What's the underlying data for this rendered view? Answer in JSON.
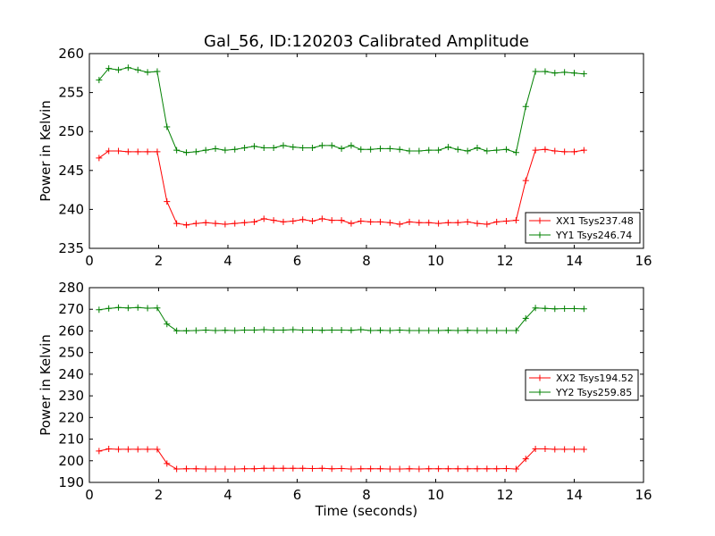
{
  "title": "Gal_56, ID:120203 Calibrated Amplitude",
  "chart_data": [
    {
      "type": "line",
      "title": "Gal_56, ID:120203 Calibrated Amplitude",
      "xlabel": "",
      "ylabel": "Power in Kelvin",
      "xlim": [
        0,
        16
      ],
      "ylim": [
        235,
        260
      ],
      "xticks": [
        "0",
        "2",
        "4",
        "6",
        "8",
        "10",
        "12",
        "14",
        "16"
      ],
      "yticks": [
        "235",
        "240",
        "245",
        "250",
        "255",
        "260"
      ],
      "legend_position": "lower-right",
      "x": [
        0.28,
        0.56,
        0.84,
        1.12,
        1.4,
        1.68,
        1.96,
        2.24,
        2.52,
        2.8,
        3.08,
        3.36,
        3.64,
        3.92,
        4.2,
        4.48,
        4.76,
        5.04,
        5.32,
        5.6,
        5.88,
        6.16,
        6.44,
        6.72,
        7.0,
        7.28,
        7.56,
        7.84,
        8.12,
        8.4,
        8.68,
        8.96,
        9.24,
        9.52,
        9.8,
        10.08,
        10.36,
        10.64,
        10.92,
        11.2,
        11.48,
        11.76,
        12.04,
        12.32,
        12.6,
        12.88,
        13.16,
        13.44,
        13.72,
        14.0,
        14.28
      ],
      "series": [
        {
          "name": "XX1 Tsys237.48",
          "color": "#ff0000",
          "values": [
            246.6,
            247.5,
            247.5,
            247.4,
            247.4,
            247.4,
            247.4,
            241.0,
            238.2,
            238.0,
            238.2,
            238.3,
            238.2,
            238.1,
            238.2,
            238.3,
            238.4,
            238.8,
            238.6,
            238.4,
            238.5,
            238.7,
            238.5,
            238.8,
            238.6,
            238.6,
            238.2,
            238.5,
            238.4,
            238.4,
            238.3,
            238.1,
            238.4,
            238.3,
            238.3,
            238.2,
            238.3,
            238.3,
            238.4,
            238.2,
            238.1,
            238.4,
            238.5,
            238.6,
            243.7,
            247.6,
            247.7,
            247.5,
            247.4,
            247.4,
            247.6
          ]
        },
        {
          "name": "YY1 Tsys246.74",
          "color": "#008000",
          "values": [
            256.6,
            258.1,
            257.9,
            258.2,
            257.9,
            257.6,
            257.7,
            250.6,
            247.6,
            247.3,
            247.4,
            247.6,
            247.8,
            247.6,
            247.7,
            247.9,
            248.1,
            247.9,
            247.9,
            248.2,
            248.0,
            247.9,
            247.9,
            248.2,
            248.2,
            247.8,
            248.2,
            247.7,
            247.7,
            247.8,
            247.8,
            247.7,
            247.5,
            247.5,
            247.6,
            247.6,
            248.0,
            247.7,
            247.5,
            247.9,
            247.5,
            247.6,
            247.7,
            247.3,
            253.2,
            257.7,
            257.7,
            257.5,
            257.6,
            257.5,
            257.4
          ]
        }
      ]
    },
    {
      "type": "line",
      "title": "",
      "xlabel": "Time (seconds)",
      "ylabel": "Power in Kelvin",
      "xlim": [
        0,
        16
      ],
      "ylim": [
        190,
        280
      ],
      "xticks": [
        "0",
        "2",
        "4",
        "6",
        "8",
        "10",
        "12",
        "14",
        "16"
      ],
      "yticks": [
        "190",
        "200",
        "210",
        "220",
        "230",
        "240",
        "250",
        "260",
        "270",
        "280"
      ],
      "legend_position": "center-right",
      "x": [
        0.28,
        0.56,
        0.84,
        1.12,
        1.4,
        1.68,
        1.96,
        2.24,
        2.52,
        2.8,
        3.08,
        3.36,
        3.64,
        3.92,
        4.2,
        4.48,
        4.76,
        5.04,
        5.32,
        5.6,
        5.88,
        6.16,
        6.44,
        6.72,
        7.0,
        7.28,
        7.56,
        7.84,
        8.12,
        8.4,
        8.68,
        8.96,
        9.24,
        9.52,
        9.8,
        10.08,
        10.36,
        10.64,
        10.92,
        11.2,
        11.48,
        11.76,
        12.04,
        12.32,
        12.6,
        12.88,
        13.16,
        13.44,
        13.72,
        14.0,
        14.28
      ],
      "series": [
        {
          "name": "XX2 Tsys194.52",
          "color": "#ff0000",
          "values": [
            204.5,
            205.5,
            205.3,
            205.3,
            205.3,
            205.3,
            205.3,
            198.7,
            196.2,
            196.3,
            196.3,
            196.2,
            196.2,
            196.2,
            196.2,
            196.3,
            196.3,
            196.5,
            196.5,
            196.5,
            196.5,
            196.5,
            196.4,
            196.5,
            196.3,
            196.4,
            196.2,
            196.3,
            196.3,
            196.3,
            196.2,
            196.2,
            196.3,
            196.2,
            196.3,
            196.3,
            196.3,
            196.3,
            196.3,
            196.3,
            196.3,
            196.3,
            196.4,
            196.2,
            200.9,
            205.5,
            205.5,
            205.3,
            205.3,
            205.3,
            205.3
          ]
        },
        {
          "name": "YY2 Tsys259.85",
          "color": "#008000",
          "values": [
            269.8,
            270.4,
            270.8,
            270.6,
            270.8,
            270.5,
            270.6,
            263.2,
            260.1,
            260.1,
            260.2,
            260.4,
            260.2,
            260.3,
            260.2,
            260.4,
            260.4,
            260.6,
            260.4,
            260.4,
            260.6,
            260.4,
            260.4,
            260.3,
            260.4,
            260.4,
            260.3,
            260.6,
            260.2,
            260.3,
            260.2,
            260.4,
            260.2,
            260.2,
            260.2,
            260.2,
            260.3,
            260.2,
            260.3,
            260.2,
            260.2,
            260.2,
            260.2,
            260.2,
            265.8,
            270.6,
            270.4,
            270.2,
            270.3,
            270.3,
            270.2
          ]
        }
      ]
    }
  ]
}
